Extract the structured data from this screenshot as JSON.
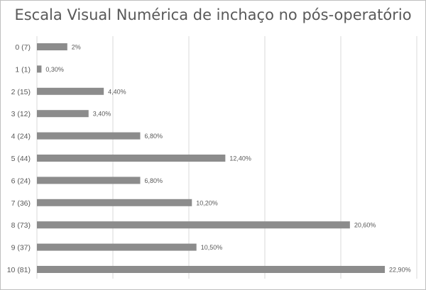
{
  "chart_data": {
    "type": "bar",
    "orientation": "horizontal",
    "title": "Escala Visual Numérica de inchaço no pós-operatório",
    "xlabel": "",
    "ylabel": "",
    "categories": [
      "0 (7)",
      "1 (1)",
      "2 (15)",
      "3 (12)",
      "4 (24)",
      "5 (44)",
      "6 (24)",
      "7 (36)",
      "8 (73)",
      "9 (37)",
      "10 (81)"
    ],
    "values": [
      2,
      0.3,
      4.4,
      3.4,
      6.8,
      12.4,
      6.8,
      10.2,
      20.6,
      10.5,
      22.9
    ],
    "data_labels": [
      "2%",
      "0,30%",
      "4,40%",
      "3,40%",
      "6,80%",
      "12,40%",
      "6,80%",
      "10,20%",
      "20,60%",
      "10,50%",
      "22,90%"
    ],
    "xlim": [
      0,
      25
    ],
    "gridlines_at": [
      0,
      5,
      10,
      15,
      20,
      25
    ],
    "grid": true,
    "bar_color": "#8c8c8c",
    "gridline_color": "#d9d9d9",
    "label_color": "#595959"
  }
}
